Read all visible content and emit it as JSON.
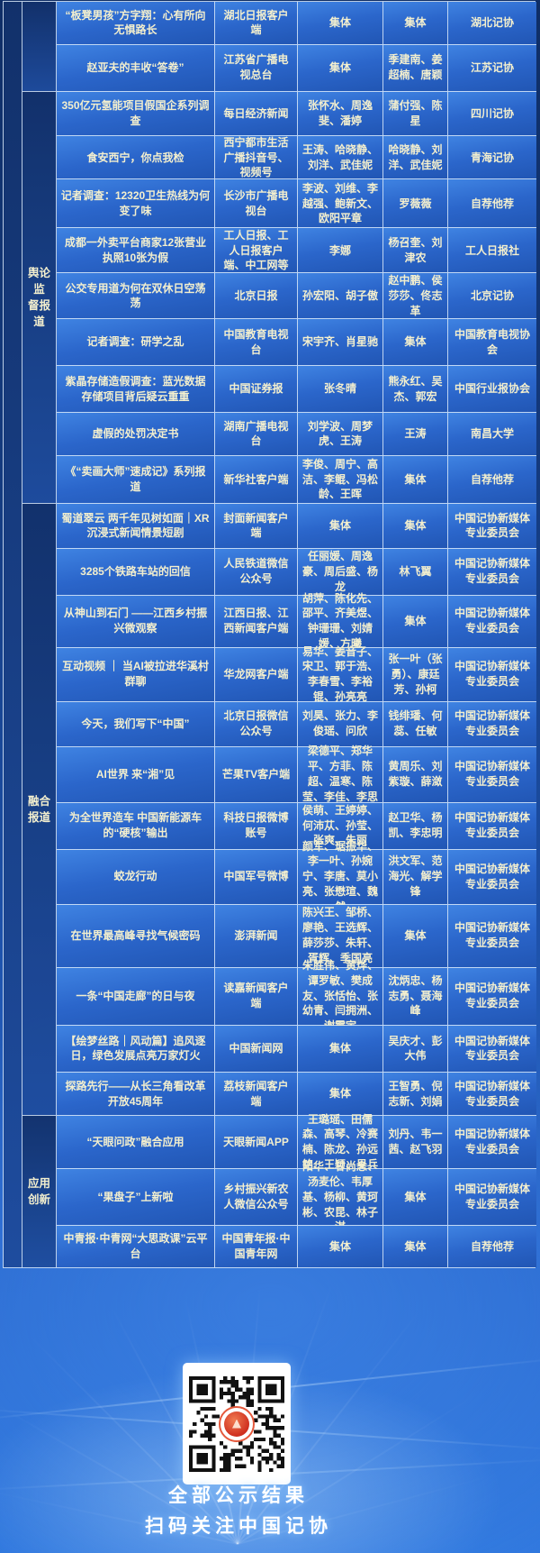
{
  "colors": {
    "background_top": "#0f2e66",
    "background_bottom": "#3078de",
    "cell_blue_light": "#3f83e2",
    "cell_blue_dark": "#2156b4",
    "grid_line": "rgba(216,232,248,0.85)",
    "text_cream": "#f3efce",
    "seal_red": "#cf2f1f"
  },
  "footer": {
    "line1": "全部公示结果",
    "line2": "扫码关注中国记协"
  },
  "table": {
    "sections": [
      {
        "label": "",
        "rows": [
          {
            "title": "“板凳男孩”方字翔：心有所向无惧路长",
            "outlet": "湖北日报客户端",
            "authors": "集体",
            "recommenders": "集体",
            "unit": "湖北记协"
          },
          {
            "title": "赵亚夫的丰收“答卷”",
            "outlet": "江苏省广播电视总台",
            "authors": "集体",
            "recommenders": "季建南、姜超楠、唐颖",
            "unit": "江苏记协"
          }
        ]
      },
      {
        "label": "舆论监\n督报道",
        "rows": [
          {
            "title": "350亿元氢能项目假国企系列调查",
            "outlet": "每日经济新闻",
            "authors": "张怀水、周逸斐、潘婷",
            "recommenders": "蒲付强、陈星",
            "unit": "四川记协"
          },
          {
            "title": "食安西宁，你点我检",
            "outlet": "西宁都市生活广播抖音号、视频号",
            "authors": "王涛、哈晓静、刘洋、武佳妮",
            "recommenders": "哈晓静、刘洋、武佳妮",
            "unit": "青海记协"
          },
          {
            "title": "记者调查：12320卫生热线为何变了味",
            "outlet": "长沙市广播电视台",
            "authors": "李波、刘维、李越强、鲍新文、欧阳平章",
            "recommenders": "罗薇薇",
            "unit": "自荐他荐"
          },
          {
            "title": "成都一外卖平台商家12张营业执照10张为假",
            "outlet": "工人日报、工人日报客户端、中工网等",
            "authors": "李娜",
            "recommenders": "杨召奎、刘津农",
            "unit": "工人日报社"
          },
          {
            "title": "公交专用道为何在双休日空荡荡",
            "outlet": "北京日报",
            "authors": "孙宏阳、胡子傲",
            "recommenders": "赵中鹏、侯莎莎、佟志革",
            "unit": "北京记协"
          },
          {
            "title": "记者调查：研学之乱",
            "outlet": "中国教育电视台",
            "authors": "宋宇齐、肖星驰",
            "recommenders": "集体",
            "unit": "中国教育电视协会"
          },
          {
            "title": "紫晶存储造假调查：蓝光数据存储项目背后疑云重重",
            "outlet": "中国证券报",
            "authors": "张冬晴",
            "recommenders": "熊永红、吴杰、郭宏",
            "unit": "中国行业报协会"
          },
          {
            "title": "虚假的处罚决定书",
            "outlet": "湖南广播电视台",
            "authors": "刘学波、周梦虎、王涛",
            "recommenders": "王涛",
            "unit": "南昌大学"
          },
          {
            "title": "《“卖画大师”速成记》系列报道",
            "outlet": "新华社客户端",
            "authors": "李俊、周宁、高洁、李鲲、冯松龄、王晖",
            "recommenders": "集体",
            "unit": "自荐他荐"
          }
        ]
      },
      {
        "label": "融合\n报道",
        "rows": [
          {
            "title": "蜀道翠云 两千年见树如面｜XR沉浸式新闻情景短剧",
            "outlet": "封面新闻客户端",
            "authors": "集体",
            "recommenders": "集体",
            "unit": "中国记协新媒体专业委员会"
          },
          {
            "title": "3285个铁路车站的回信",
            "outlet": "人民铁道微信公众号",
            "authors": "任丽媛、周逸豪、周后盛、杨龙",
            "recommenders": "林飞翼",
            "unit": "中国记协新媒体专业委员会"
          },
          {
            "title": "从神山到石门 ——江西乡村振兴微观察",
            "outlet": "江西日报、江西新闻客户端",
            "authors": "胡萍、陈化先、邵平、齐美煜、钟珊珊、刘婧媛、方曦",
            "recommenders": "集体",
            "unit": "中国记协新媒体专业委员会"
          },
          {
            "title": "互动视频 ｜ 当AI被拉进华溪村群聊",
            "outlet": "华龙网客户端",
            "authors": "易华、姜音子、宋卫、郭于浩、李春雪、李裕锟、孙亮亮",
            "recommenders": "张一叶（张勇）、康廷芳、孙柯",
            "unit": "中国记协新媒体专业委员会"
          },
          {
            "title": "今天，我们写下“中国”",
            "outlet": "北京日报微信公众号",
            "authors": "刘昊、张力、李俊瑶、问欣",
            "recommenders": "钱绯璠、何蕊、任敏",
            "unit": "中国记协新媒体专业委员会"
          },
          {
            "title": "AI世界 来“湘”见",
            "outlet": "芒果TV客户端",
            "authors": "梁德平、郑华平、方菲、陈超、温寒、陈莹、李佳、李思",
            "recommenders": "黄周乐、刘紫璇、薛潋",
            "unit": "中国记协新媒体专业委员会"
          },
          {
            "title": "为全世界造车 中国新能源车的“硬核”输出",
            "outlet": "科技日报微博账号",
            "authors": "侯萌、王婷婷、何沛苁、孙莹、张爽、朱丽",
            "recommenders": "赵卫华、杨凯、李忠明",
            "unit": "中国记协新媒体专业委员会"
          },
          {
            "title": "蛟龙行动",
            "outlet": "中国军号微博",
            "authors": "颜军、琚振华、李一叶、孙婉宁、李唐、莫小亮、张懋瑄、魏然",
            "recommenders": "洪文军、范海光、解学锋",
            "unit": "中国记协新媒体专业委员会"
          },
          {
            "title": "在世界最高峰寻找气候密码",
            "outlet": "澎湃新闻",
            "authors": "陈兴王、邹桥、廖艳、王选辉、薛莎莎、朱轩、胥辉、季国亮",
            "recommenders": "集体",
            "unit": "中国记协新媒体专业委员会"
          },
          {
            "title": "一条“中国走廊”的日与夜",
            "outlet": "读嘉新闻客户端",
            "authors": "朱胜伟、黄烨、谭罗敏、樊成友、张恬怡、张幼青、闫拥洲、谢震宇",
            "recommenders": "沈炳忠、杨志勇、聂海峰",
            "unit": "中国记协新媒体专业委员会"
          },
          {
            "title": "【绘梦丝路｜风动篇】追风逐日，绿色发展点亮万家灯火",
            "outlet": "中国新闻网",
            "authors": "集体",
            "recommenders": "吴庆才、彭大伟",
            "unit": "中国记协新媒体专业委员会"
          },
          {
            "title": "探路先行——从长三角看改革开放45周年",
            "outlet": "荔枝新闻客户端",
            "authors": "集体",
            "recommenders": "王智勇、倪志新、刘娟",
            "unit": "中国记协新媒体专业委员会"
          }
        ]
      },
      {
        "label": "应用\n创新",
        "rows": [
          {
            "title": "“天眼问政”融合应用",
            "outlet": "天眼新闻APP",
            "authors": "王璐瑶、田儒森、高琴、冷赛楠、陈龙、孙远铭、王颖、吴兵",
            "recommenders": "刘丹、韦一茜、赵飞羽",
            "unit": "中国记协新媒体专业委员会"
          },
          {
            "title": "“果盘子”上新啦",
            "outlet": "乡村振兴新农人微信公众号",
            "authors": "阳华、甘尚念、汤麦伦、韦厚基、杨柳、黄珂彬、农昆、林子淇",
            "recommenders": "集体",
            "unit": "中国记协新媒体专业委员会"
          },
          {
            "title": "中青报·中青网“大思政课”云平台",
            "outlet": "中国青年报·中国青年网",
            "authors": "集体",
            "recommenders": "集体",
            "unit": "自荐他荐"
          }
        ]
      }
    ]
  }
}
